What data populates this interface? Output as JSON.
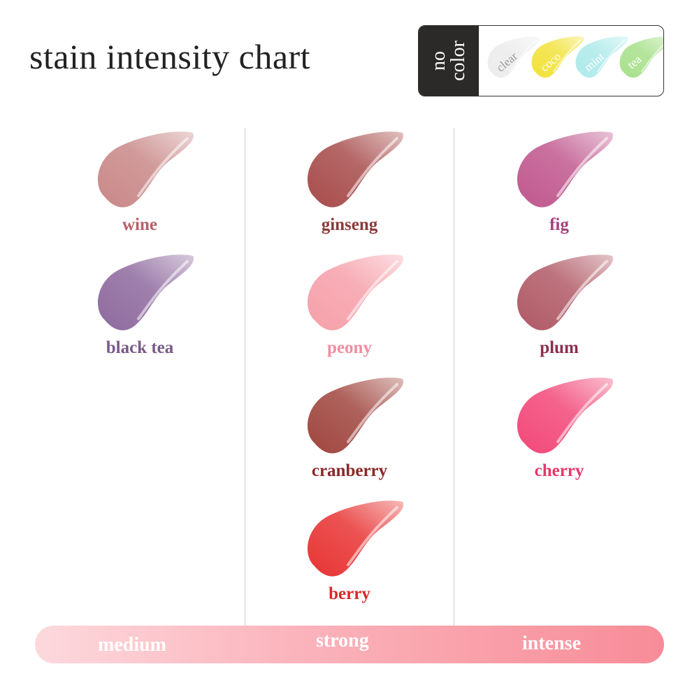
{
  "title": "stain intensity chart",
  "no_color": {
    "label": "no\ncolor",
    "items": [
      {
        "name": "clear",
        "color": "#ececec",
        "text_color": "#9a9a9a"
      },
      {
        "name": "coco",
        "color": "#f2e23a",
        "text_color": "#ffffff"
      },
      {
        "name": "mint",
        "color": "#aeeaea",
        "text_color": "#ffffff"
      },
      {
        "name": "tea",
        "color": "#a8e08c",
        "text_color": "#ffffff"
      }
    ]
  },
  "columns": [
    {
      "level": "medium",
      "shades": [
        {
          "name": "wine",
          "color": "#c98888",
          "label_color": "#b8606a"
        },
        {
          "name": "black tea",
          "color": "#8e6a9e",
          "label_color": "#7a5a88"
        }
      ]
    },
    {
      "level": "strong",
      "shades": [
        {
          "name": "ginseng",
          "color": "#a84c4c",
          "label_color": "#8a3a3a"
        },
        {
          "name": "peony",
          "color": "#f6a0aa",
          "label_color": "#f08ea0"
        },
        {
          "name": "cranberry",
          "color": "#a0463f",
          "label_color": "#8a2828"
        },
        {
          "name": "berry",
          "color": "#e83434",
          "label_color": "#d82a2a"
        }
      ]
    },
    {
      "level": "intense",
      "shades": [
        {
          "name": "fig",
          "color": "#c0588e",
          "label_color": "#a8407e"
        },
        {
          "name": "plum",
          "color": "#b05a66",
          "label_color": "#8a3050"
        },
        {
          "name": "cherry",
          "color": "#f24878",
          "label_color": "#e8386a"
        }
      ]
    }
  ],
  "scale": {
    "labels": [
      "medium",
      "strong",
      "intense"
    ],
    "colors": [
      "#fcd9dd",
      "#f78c98"
    ]
  }
}
